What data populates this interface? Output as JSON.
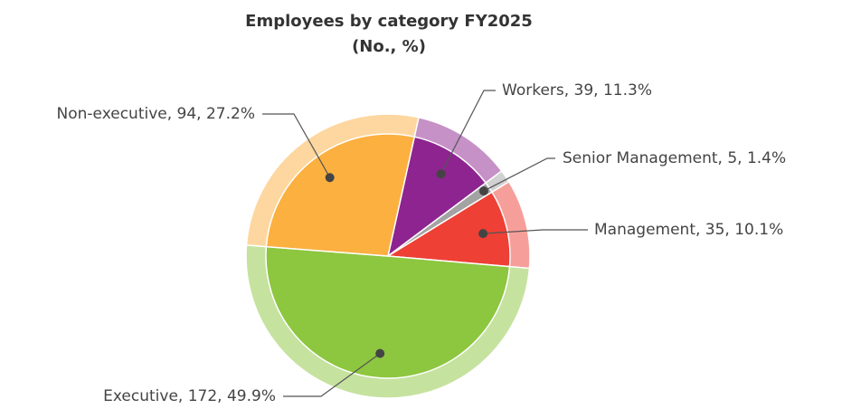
{
  "chart_data": {
    "type": "pie",
    "title": "Employees by category FY2025",
    "subtitle": "(No., %)",
    "values": [
      39,
      5,
      35,
      172,
      94
    ],
    "value_labels": [
      "Workers, 39, 11.3%",
      "Senior Management, 5, 1.4%",
      "Management, 35, 10.1%",
      "Executive, 172, 49.9%",
      "Non-executive, 94, 27.2%"
    ],
    "colors": [
      "#8e2490",
      "#a3a3a3",
      "#ee4035",
      "#8dc63f",
      "#fbb040"
    ]
  }
}
